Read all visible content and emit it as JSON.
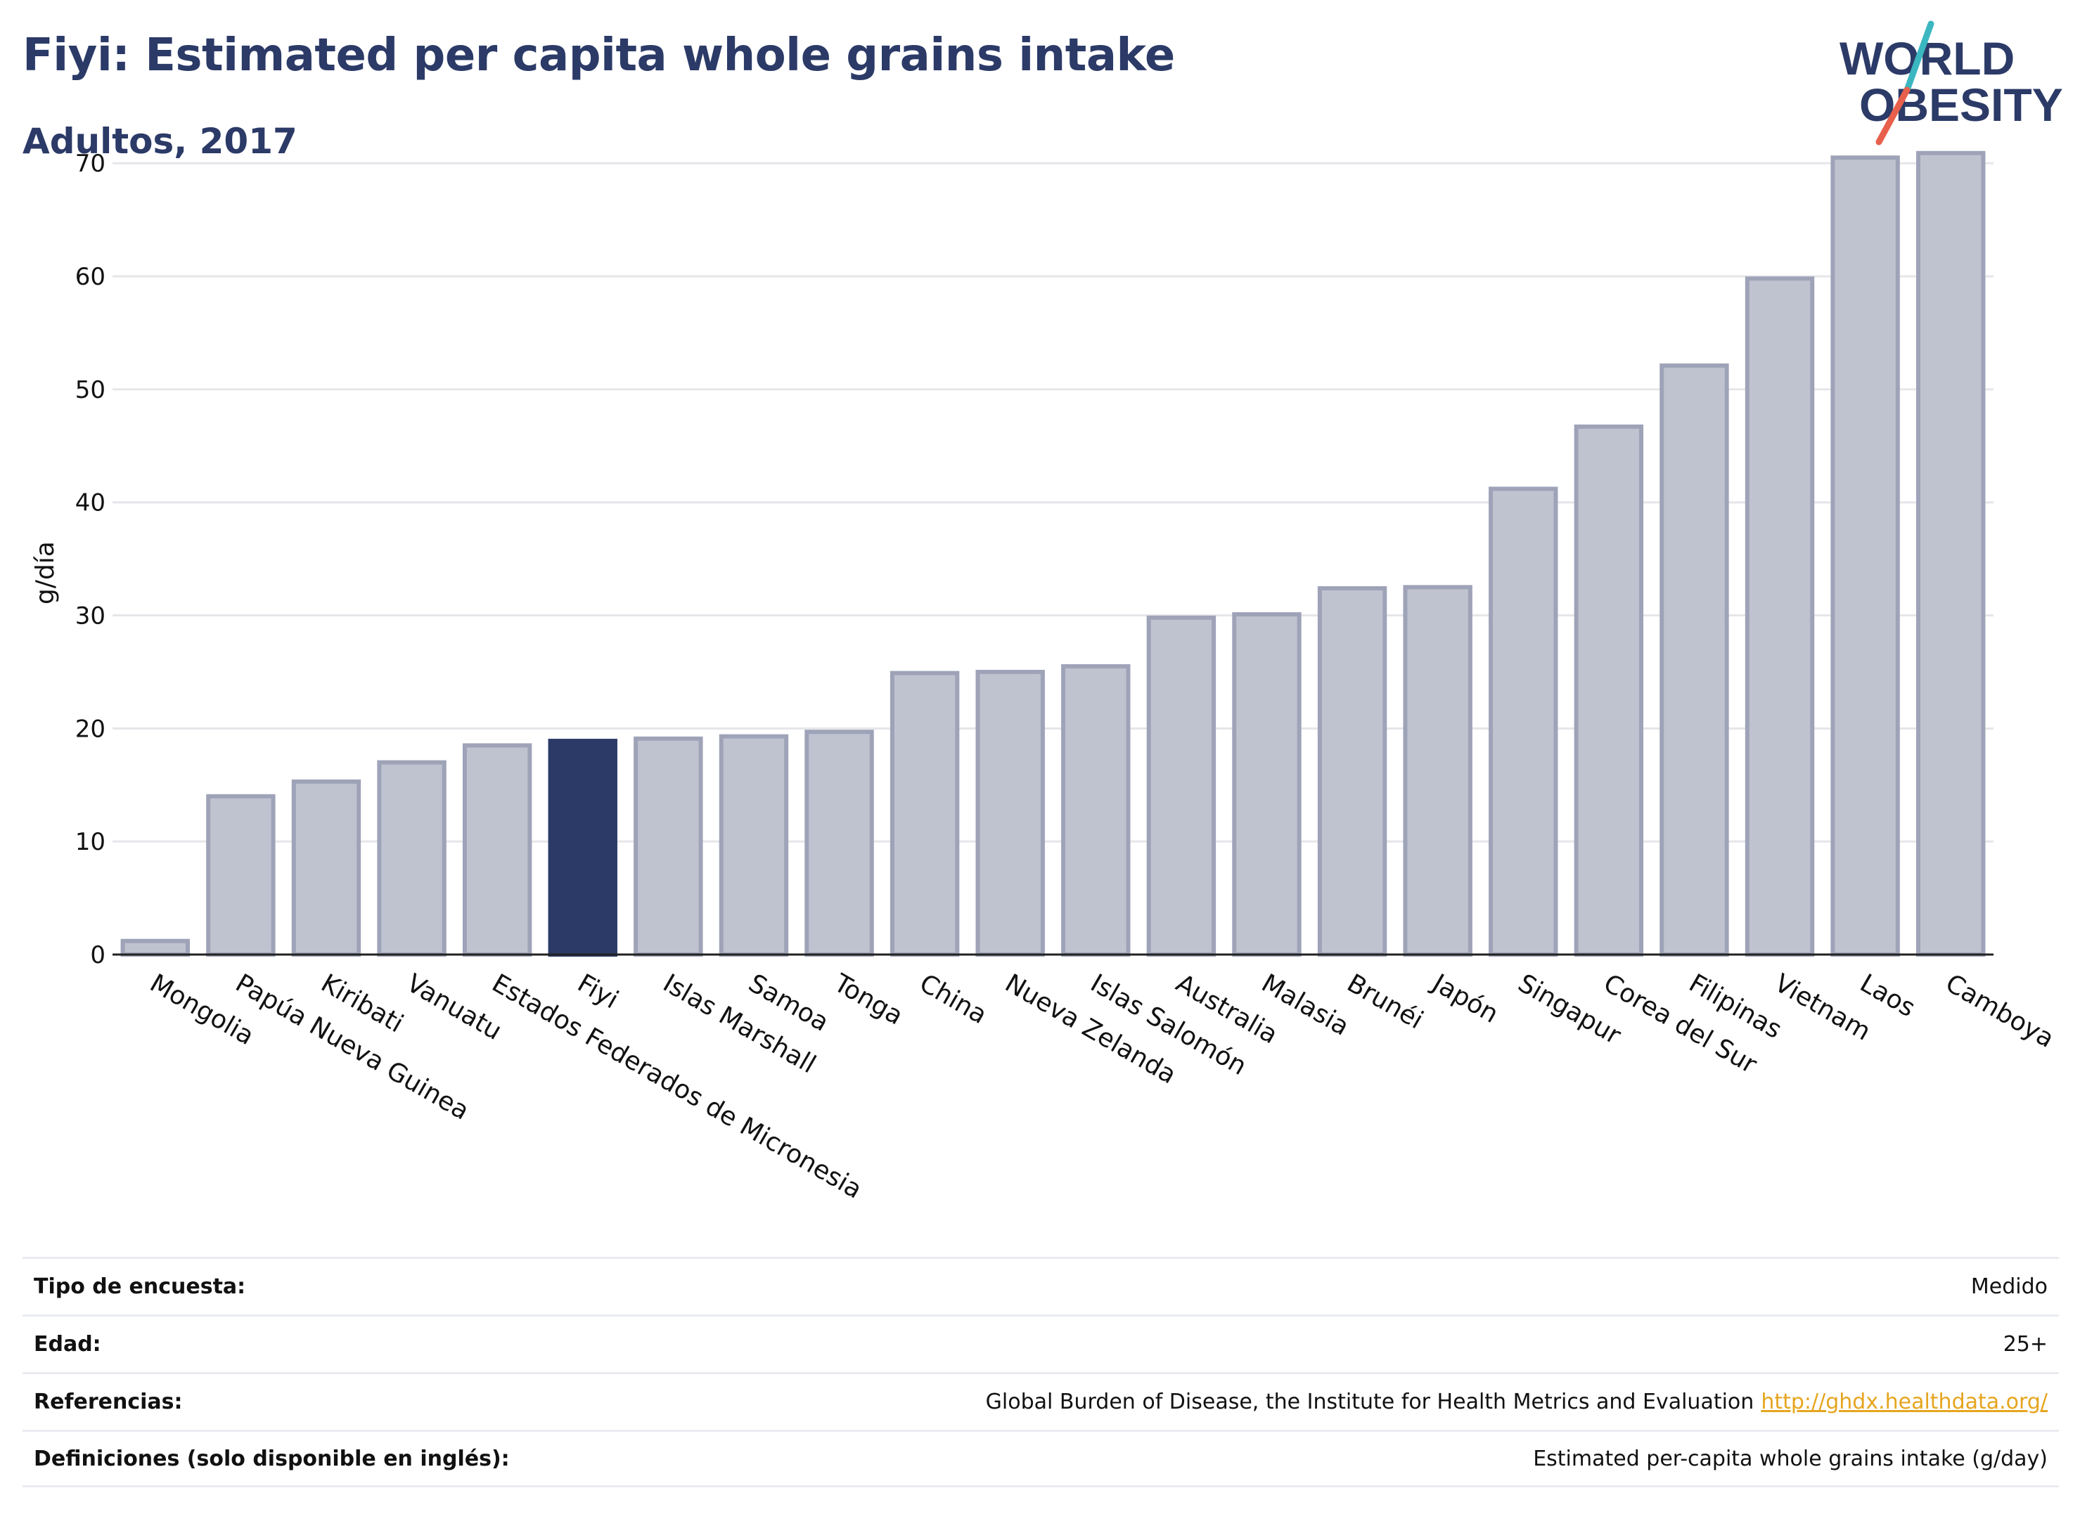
{
  "header": {
    "title": "Fiyi: Estimated per capita whole grains intake",
    "subtitle": "Adultos, 2017"
  },
  "logo": {
    "line1": "WORLD",
    "line2": "OBESITY",
    "text_color": "#2b3a67",
    "slash_color_top": "#3bb7c1",
    "slash_color_bottom": "#e8604c"
  },
  "colors": {
    "bar_fill": "#bfc3d0",
    "bar_stroke": "#9ea3b8",
    "highlight_fill": "#2b3a67",
    "grid": "#e6e6ea",
    "axis": "#222222"
  },
  "chart_data": {
    "type": "bar",
    "title": "",
    "xlabel": "",
    "ylabel": "g/día",
    "ylim": [
      0,
      73
    ],
    "yticks": [
      0,
      10,
      20,
      30,
      40,
      50,
      60,
      70
    ],
    "grid": true,
    "highlight": "Fiyi",
    "categories": [
      "Mongolia",
      "Papúa Nueva Guinea",
      "Kiribati",
      "Vanuatu",
      "Estados Federados de Micronesia",
      "Fiyi",
      "Islas Marshall",
      "Samoa",
      "Tonga",
      "China",
      "Nueva Zelanda",
      "Islas Salomón",
      "Australia",
      "Malasia",
      "Brunéi",
      "Japón",
      "Singapur",
      "Corea del Sur",
      "Filipinas",
      "Vietnam",
      "Laos",
      "Camboya"
    ],
    "values": [
      1.2,
      14.0,
      15.3,
      17.0,
      18.5,
      18.9,
      19.1,
      19.3,
      19.7,
      24.9,
      25.0,
      25.5,
      29.8,
      30.1,
      32.4,
      32.5,
      41.2,
      46.7,
      52.1,
      59.8,
      70.5,
      70.9
    ]
  },
  "meta": {
    "rows": [
      {
        "label": "Tipo de encuesta:",
        "value": "Medido"
      },
      {
        "label": "Edad:",
        "value": "25+"
      },
      {
        "label": "Referencias:",
        "value": "Global Burden of Disease, the Institute for Health Metrics and Evaluation",
        "link": "http://ghdx.healthdata.org/"
      },
      {
        "label": "Definiciones (solo disponible en inglés):",
        "value": "Estimated per-capita whole grains intake (g/day)"
      }
    ]
  }
}
